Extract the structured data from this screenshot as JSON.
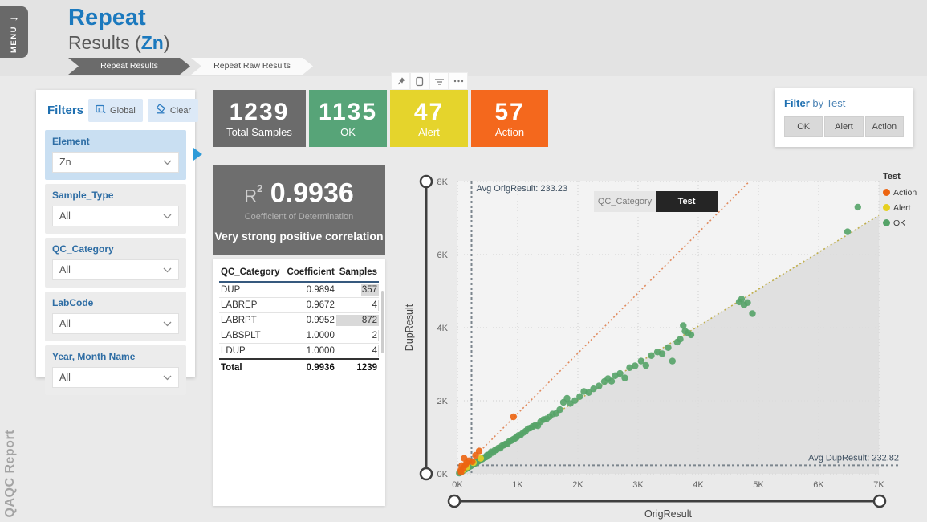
{
  "brand": {
    "vertical_label": "QAQC Report"
  },
  "menu": {
    "label": "MENU"
  },
  "header": {
    "title": "Repeat",
    "subtitle_prefix": "Results (",
    "element": "Zn",
    "subtitle_suffix": ")"
  },
  "breadcrumbs": [
    {
      "label": "Repeat Results",
      "active": true
    },
    {
      "label": "Repeat Raw Results",
      "active": false
    }
  ],
  "filters": {
    "title": "Filters",
    "global_button": "Global",
    "clear_button": "Clear",
    "groups": [
      {
        "label": "Element",
        "value": "Zn",
        "highlighted": true
      },
      {
        "label": "Sample_Type",
        "value": "All",
        "highlighted": false
      },
      {
        "label": "QC_Category",
        "value": "All",
        "highlighted": false
      },
      {
        "label": "LabCode",
        "value": "All",
        "highlighted": false
      },
      {
        "label": "Year, Month Name",
        "value": "All",
        "highlighted": false
      }
    ]
  },
  "visual_toolbar": {
    "icons": [
      "pin-icon",
      "copy-icon",
      "filter-lines-icon",
      "more-options-icon"
    ]
  },
  "kpis": [
    {
      "value": "1239",
      "label": "Total Samples",
      "color": "#6b6b6b",
      "text": "#ffffff"
    },
    {
      "value": "1135",
      "label": "OK",
      "color": "#57a478",
      "text": "#ffffff"
    },
    {
      "value": "47",
      "label": "Alert",
      "color": "#e5d42c",
      "text": "#ffffff"
    },
    {
      "value": "57",
      "label": "Action",
      "color": "#f4681d",
      "text": "#ffffff"
    }
  ],
  "r2_card": {
    "label": "R",
    "exponent": "2",
    "value": "0.9936",
    "subtitle": "Coefficient of Determination",
    "verdict": "Very strong positive correlation"
  },
  "coefficient_table": {
    "columns": [
      "QC_Category",
      "Coefficient",
      "Samples"
    ],
    "rows": [
      {
        "qc": "DUP",
        "coefficient": "0.9894",
        "samples": "357",
        "bar": 0.41
      },
      {
        "qc": "LABREP",
        "coefficient": "0.9672",
        "samples": "4",
        "bar": 0.01
      },
      {
        "qc": "LABRPT",
        "coefficient": "0.9952",
        "samples": "872",
        "bar": 1.0
      },
      {
        "qc": "LABSPLT",
        "coefficient": "1.0000",
        "samples": "2",
        "bar": 0.01
      },
      {
        "qc": "LDUP",
        "coefficient": "1.0000",
        "samples": "4",
        "bar": 0.01
      }
    ],
    "total": {
      "qc": "Total",
      "coefficient": "0.9936",
      "samples": "1239"
    }
  },
  "series_toggle": [
    {
      "label": "QC_Category",
      "active": false
    },
    {
      "label": "Test",
      "active": true
    }
  ],
  "test_filter": {
    "title_bold": "Filter",
    "title_rest": " by Test",
    "buttons": [
      "OK",
      "Alert",
      "Action"
    ]
  },
  "chart_data": {
    "type": "scatter",
    "xlabel": "OrigResult",
    "ylabel": "DupResult",
    "xlim": [
      0,
      7000
    ],
    "ylim": [
      0,
      8000
    ],
    "x_ticks": [
      "0K",
      "1K",
      "2K",
      "3K",
      "4K",
      "5K",
      "6K",
      "7K"
    ],
    "y_ticks": [
      "0K",
      "2K",
      "4K",
      "6K",
      "8K"
    ],
    "grid": true,
    "legend": {
      "title": "Test",
      "position": "top-right",
      "entries": [
        {
          "label": "Action",
          "color": "#ec6411"
        },
        {
          "label": "Alert",
          "color": "#e6d021"
        },
        {
          "label": "OK",
          "color": "#55a368"
        }
      ]
    },
    "avg_lines": {
      "x": {
        "label": "Avg OrigResult: 233.23",
        "value": 233.23
      },
      "y": {
        "label": "Avg DupResult: 232.82",
        "value": 232.82
      }
    },
    "reference_lines": [
      {
        "name": "threshold",
        "slope": 1.65,
        "color": "#e08a5e",
        "style": "dotted"
      },
      {
        "name": "trend",
        "slope": 1.01,
        "color": "#bfae4c",
        "style": "dotted"
      }
    ],
    "series": [
      {
        "name": "OK",
        "color": "#55a368",
        "points": [
          [
            30,
            20
          ],
          [
            45,
            50
          ],
          [
            60,
            60
          ],
          [
            75,
            70
          ],
          [
            90,
            85
          ],
          [
            105,
            100
          ],
          [
            120,
            115
          ],
          [
            135,
            130
          ],
          [
            150,
            145
          ],
          [
            165,
            170
          ],
          [
            180,
            175
          ],
          [
            195,
            200
          ],
          [
            210,
            205
          ],
          [
            225,
            220
          ],
          [
            240,
            245
          ],
          [
            255,
            260
          ],
          [
            270,
            265
          ],
          [
            285,
            295
          ],
          [
            300,
            290
          ],
          [
            315,
            315
          ],
          [
            330,
            335
          ],
          [
            345,
            340
          ],
          [
            360,
            365
          ],
          [
            375,
            370
          ],
          [
            390,
            395
          ],
          [
            410,
            405
          ],
          [
            430,
            440
          ],
          [
            450,
            445
          ],
          [
            470,
            460
          ],
          [
            490,
            505
          ],
          [
            510,
            515
          ],
          [
            530,
            525
          ],
          [
            560,
            600
          ],
          [
            590,
            585
          ],
          [
            620,
            645
          ],
          [
            650,
            660
          ],
          [
            680,
            705
          ],
          [
            710,
            700
          ],
          [
            740,
            765
          ],
          [
            770,
            785
          ],
          [
            800,
            815
          ],
          [
            830,
            825
          ],
          [
            860,
            885
          ],
          [
            890,
            905
          ],
          [
            920,
            935
          ],
          [
            950,
            965
          ],
          [
            980,
            995
          ],
          [
            1010,
            1045
          ],
          [
            1050,
            1065
          ],
          [
            1090,
            1125
          ],
          [
            1130,
            1165
          ],
          [
            1170,
            1235
          ],
          [
            1210,
            1255
          ],
          [
            1250,
            1295
          ],
          [
            1290,
            1325
          ],
          [
            1335,
            1315
          ],
          [
            1380,
            1425
          ],
          [
            1430,
            1485
          ],
          [
            1480,
            1505
          ],
          [
            1530,
            1565
          ],
          [
            1580,
            1635
          ],
          [
            1640,
            1655
          ],
          [
            1700,
            1755
          ],
          [
            1760,
            1955
          ],
          [
            1820,
            2065
          ],
          [
            1875,
            1925
          ],
          [
            1950,
            2005
          ],
          [
            2030,
            2115
          ],
          [
            2100,
            2255
          ],
          [
            2180,
            2225
          ],
          [
            2260,
            2325
          ],
          [
            2350,
            2405
          ],
          [
            2440,
            2525
          ],
          [
            2500,
            2605
          ],
          [
            2560,
            2535
          ],
          [
            2620,
            2685
          ],
          [
            2700,
            2745
          ],
          [
            2780,
            2625
          ],
          [
            2860,
            2905
          ],
          [
            2950,
            2955
          ],
          [
            3050,
            3085
          ],
          [
            3130,
            2965
          ],
          [
            3220,
            3235
          ],
          [
            3320,
            3335
          ],
          [
            3400,
            3285
          ],
          [
            3500,
            3455
          ],
          [
            3570,
            3085
          ],
          [
            3650,
            3605
          ],
          [
            3700,
            3685
          ],
          [
            3750,
            4055
          ],
          [
            3780,
            3905
          ],
          [
            3830,
            3855
          ],
          [
            3880,
            3805
          ],
          [
            4680,
            4705
          ],
          [
            4720,
            4785
          ],
          [
            4760,
            4625
          ],
          [
            4820,
            4685
          ],
          [
            4900,
            4385
          ],
          [
            6480,
            6625
          ],
          [
            6650,
            7300
          ]
        ]
      },
      {
        "name": "Alert",
        "color": "#e6d021",
        "points": [
          [
            85,
            95
          ],
          [
            160,
            190
          ],
          [
            265,
            305
          ],
          [
            385,
            425
          ]
        ]
      },
      {
        "name": "Action",
        "color": "#ec6411",
        "points": [
          [
            55,
            100
          ],
          [
            60,
            40
          ],
          [
            70,
            225
          ],
          [
            95,
            160
          ],
          [
            110,
            425
          ],
          [
            130,
            240
          ],
          [
            150,
            300
          ],
          [
            190,
            355
          ],
          [
            245,
            335
          ],
          [
            300,
            505
          ],
          [
            360,
            625
          ],
          [
            930,
            1560
          ]
        ]
      }
    ]
  }
}
